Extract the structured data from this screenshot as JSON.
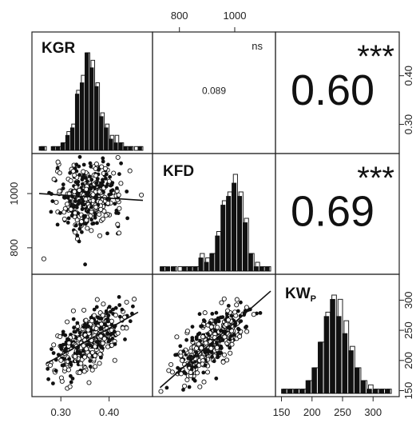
{
  "chart_data": {
    "type": "scatter-matrix",
    "variables": [
      {
        "id": "KGR",
        "label": "KGR",
        "range": [
          0.25,
          0.48
        ],
        "ticks": [
          0.3,
          0.4
        ],
        "tick_labels": [
          "0.30",
          "0.40"
        ]
      },
      {
        "id": "KFD",
        "label": "KFD",
        "range": [
          720,
          1130
        ],
        "ticks": [
          800,
          1000
        ],
        "tick_labels": [
          "800",
          "1000"
        ]
      },
      {
        "id": "KWp",
        "label": "KW",
        "label_sub": "P",
        "range": [
          148,
          335
        ],
        "ticks": [
          150,
          200,
          250,
          300
        ],
        "tick_labels": [
          "150",
          "200",
          "250",
          "300"
        ]
      }
    ],
    "correlations": [
      {
        "row": 1,
        "col": 2,
        "pair": [
          "KGR",
          "KFD"
        ],
        "r_text": "0.089",
        "signif": "ns"
      },
      {
        "row": 1,
        "col": 3,
        "pair": [
          "KGR",
          "KWp"
        ],
        "r_text": "0.60",
        "signif": "***"
      },
      {
        "row": 2,
        "col": 3,
        "pair": [
          "KFD",
          "KWp"
        ],
        "r_text": "0.69",
        "signif": "***"
      }
    ],
    "histograms": [
      {
        "variable": "KGR",
        "bin_edges": [
          0.255,
          0.27,
          0.28,
          0.29,
          0.3,
          0.31,
          0.32,
          0.33,
          0.34,
          0.35,
          0.36,
          0.37,
          0.38,
          0.39,
          0.4,
          0.41,
          0.42,
          0.43,
          0.44,
          0.45,
          0.46,
          0.47
        ],
        "filled": [
          1,
          0,
          1,
          1,
          2,
          4,
          6,
          15,
          18,
          26,
          22,
          17,
          9,
          6,
          3,
          2,
          2,
          1,
          1,
          0,
          1
        ],
        "open": [
          1,
          0,
          1,
          1,
          2,
          5,
          7,
          16,
          20,
          26,
          24,
          18,
          10,
          7,
          4,
          4,
          2,
          1,
          1,
          1,
          1
        ]
      },
      {
        "variable": "KFD",
        "bin_edges": [
          730,
          750,
          770,
          790,
          810,
          830,
          850,
          870,
          890,
          910,
          930,
          950,
          970,
          990,
          1010,
          1030,
          1050,
          1070,
          1090,
          1110,
          1130
        ],
        "filled": [
          1,
          1,
          1,
          0,
          1,
          1,
          1,
          3,
          2,
          4,
          8,
          15,
          17,
          20,
          17,
          11,
          4,
          1,
          1,
          1
        ],
        "open": [
          1,
          0,
          1,
          1,
          1,
          1,
          1,
          4,
          3,
          4,
          9,
          16,
          18,
          22,
          18,
          12,
          4,
          2,
          1,
          1
        ]
      },
      {
        "variable": "KWp",
        "bin_edges": [
          150,
          160,
          170,
          180,
          190,
          200,
          210,
          220,
          230,
          240,
          250,
          260,
          270,
          280,
          290,
          300,
          310,
          320,
          330
        ],
        "filled": [
          1,
          1,
          1,
          1,
          3,
          6,
          12,
          18,
          22,
          18,
          14,
          10,
          6,
          3,
          1,
          1,
          1,
          1
        ],
        "open": [
          1,
          1,
          1,
          1,
          3,
          6,
          12,
          19,
          23,
          22,
          17,
          11,
          6,
          3,
          2,
          1,
          1,
          1
        ]
      }
    ],
    "scatter_panels": [
      {
        "row": 2,
        "col": 1,
        "x": "KGR",
        "y": "KFD",
        "fit": [
          [
            0.255,
            1000
          ],
          [
            0.47,
            975
          ]
        ],
        "r": 0.089
      },
      {
        "row": 3,
        "col": 1,
        "x": "KGR",
        "y": "KWp",
        "fit": [
          [
            0.27,
            195
          ],
          [
            0.46,
            280
          ]
        ],
        "r": 0.6
      },
      {
        "row": 3,
        "col": 2,
        "x": "KFD",
        "y": "KWp",
        "fit": [
          [
            730,
            155
          ],
          [
            1130,
            315
          ]
        ],
        "r": 0.69
      }
    ],
    "legend": "none",
    "grid": false
  }
}
